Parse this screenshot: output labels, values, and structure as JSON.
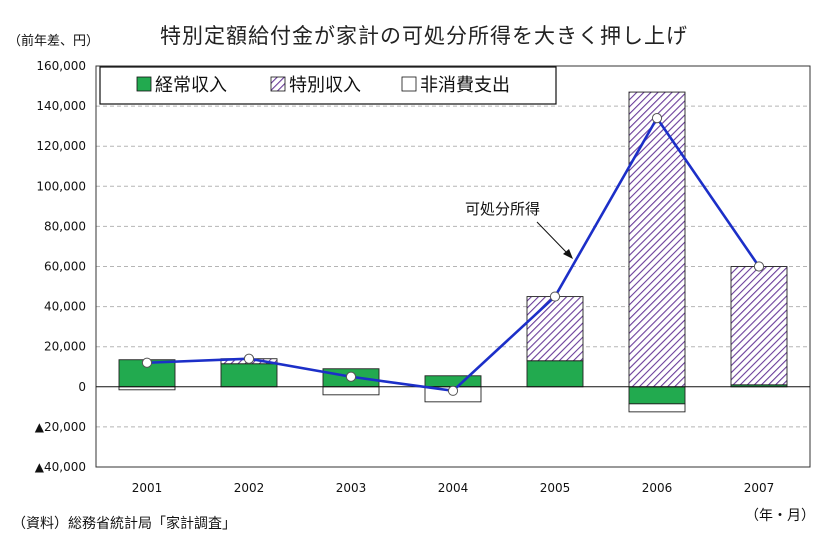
{
  "header": {
    "unit_label": "（前年差、円）",
    "title": "特別定額給付金が家計の可処分所得を大きく押し上げ"
  },
  "footer": {
    "source": "（資料）総務省統計局「家計調査」",
    "x_unit": "（年・月）"
  },
  "colors": {
    "regular_income": "#22aa4f",
    "special_income_fill": "#ffffff",
    "special_income_hatch": "#6a3d9a",
    "non_consumption": "#ffffff",
    "disposable_line": "#1c2fc8",
    "marker_fill": "#ffffff"
  },
  "chart_data": {
    "type": "bar",
    "stacked": true,
    "title": "特別定額給付金が家計の可処分所得を大きく押し上げ",
    "categories": [
      "2001",
      "2002",
      "2003",
      "2004",
      "2005",
      "2006",
      "2007"
    ],
    "ylim": [
      -40000,
      160000
    ],
    "yticks": [
      -40000,
      -20000,
      0,
      20000,
      40000,
      60000,
      80000,
      100000,
      120000,
      140000,
      160000
    ],
    "ytick_labels": [
      "▲40,000",
      "▲20,000",
      "0",
      "20,000",
      "40,000",
      "60,000",
      "80,000",
      "100,000",
      "120,000",
      "140,000",
      "160,000"
    ],
    "grid": true,
    "legend_position": "top-left",
    "series": [
      {
        "name": "経常収入",
        "kind": "bar",
        "values": [
          13500,
          11500,
          9000,
          5500,
          13000,
          -8500,
          1000
        ]
      },
      {
        "name": "特別収入",
        "kind": "bar",
        "values": [
          0,
          2500,
          0,
          0,
          32000,
          147000,
          59000
        ]
      },
      {
        "name": "非消費支出",
        "kind": "bar",
        "values": [
          -1500,
          0,
          -4000,
          -7500,
          0,
          -4000,
          0
        ]
      },
      {
        "name": "可処分所得",
        "kind": "line",
        "values": [
          12000,
          14000,
          5000,
          -2000,
          45000,
          134000,
          60000
        ]
      }
    ],
    "annotations": [
      {
        "text": "可処分所得"
      }
    ]
  }
}
